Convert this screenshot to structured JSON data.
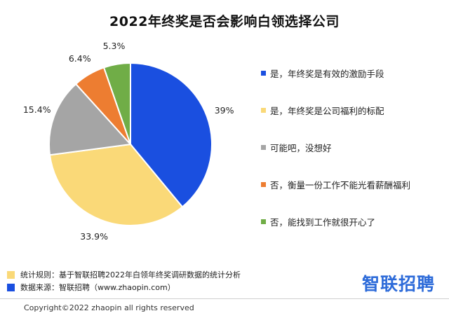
{
  "chart_data": {
    "type": "pie",
    "title": "2022年终奖是否会影响白领选择公司",
    "slices": [
      {
        "label": "是，年终奖是有效的激励手段",
        "value": 39,
        "value_label": "39%",
        "color": "#1a4fe0"
      },
      {
        "label": "是，年终奖是公司福利的标配",
        "value": 33.9,
        "value_label": "33.9%",
        "color": "#fad978"
      },
      {
        "label": "可能吧，没想好",
        "value": 15.4,
        "value_label": "15.4%",
        "color": "#a5a5a5"
      },
      {
        "label": "否，衡量一份工作不能光看薪酬福利",
        "value": 6.4,
        "value_label": "6.4%",
        "color": "#ed7d31"
      },
      {
        "label": "否，能找到工作就很开心了",
        "value": 5.3,
        "value_label": "5.3%",
        "color": "#70ad47"
      }
    ],
    "legend_position": "right"
  },
  "footnotes": [
    {
      "text": "统计规则：基于智联招聘2022年白领年终奖调研数据的统计分析",
      "color": "#fad978"
    },
    {
      "text": "数据来源：智联招聘（www.zhaopin.com）",
      "color": "#1a4fe0"
    }
  ],
  "logo_text": "智联招聘",
  "copyright": "Copyright©2022 zhaopin all rights reserved"
}
